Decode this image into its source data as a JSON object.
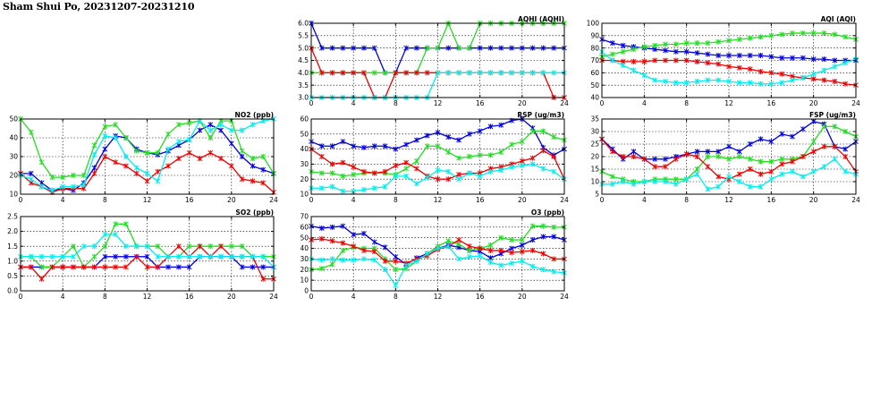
{
  "page_title": "Sham Shui Po, 20231207-20231210",
  "colors": {
    "blue": "#0000dd",
    "green": "#22dd22",
    "red": "#ee0000",
    "cyan": "#00eeee"
  },
  "chart_data": [
    {
      "id": "aqhi",
      "type": "line",
      "title": "AQHI (AQHI)",
      "xlim": [
        0,
        24
      ],
      "xticks": [
        0,
        4,
        8,
        12,
        16,
        20,
        24
      ],
      "ylim": [
        3,
        6
      ],
      "yticks": [
        "3.0",
        "3.5",
        "4.0",
        "4.5",
        "5.0",
        "5.5",
        "6.0"
      ],
      "grid": true,
      "x": [
        0,
        1,
        2,
        3,
        4,
        5,
        6,
        7,
        8,
        9,
        10,
        11,
        12,
        13,
        14,
        15,
        16,
        17,
        18,
        19,
        20,
        21,
        22,
        23,
        24
      ],
      "series": [
        {
          "color": "blue",
          "values": [
            6,
            5,
            5,
            5,
            5,
            5,
            5,
            4,
            4,
            5,
            5,
            5,
            5,
            5,
            5,
            5,
            5,
            5,
            5,
            5,
            5,
            5,
            5,
            5,
            5
          ]
        },
        {
          "color": "green",
          "values": [
            4,
            4,
            4,
            4,
            4,
            4,
            4,
            4,
            4,
            4,
            4,
            5,
            5,
            6,
            5,
            5,
            6,
            6,
            6,
            6,
            6,
            6,
            6,
            6,
            6
          ]
        },
        {
          "color": "red",
          "values": [
            5,
            4,
            4,
            4,
            4,
            4,
            3,
            3,
            4,
            4,
            4,
            4,
            4,
            4,
            4,
            4,
            4,
            4,
            4,
            4,
            4,
            4,
            4,
            3,
            3
          ]
        },
        {
          "color": "cyan",
          "values": [
            3,
            3,
            3,
            3,
            3,
            3,
            3,
            3,
            3,
            3,
            3,
            3,
            4,
            4,
            4,
            4,
            4,
            4,
            4,
            4,
            4,
            4,
            4,
            4,
            4
          ]
        }
      ]
    },
    {
      "id": "aqi",
      "type": "line",
      "title": "AQI (AQI)",
      "xlim": [
        0,
        24
      ],
      "xticks": [
        0,
        4,
        8,
        12,
        16,
        20,
        24
      ],
      "ylim": [
        40,
        100
      ],
      "yticks": [
        "40",
        "50",
        "60",
        "70",
        "80",
        "90",
        "100"
      ],
      "grid": true,
      "x": [
        0,
        1,
        2,
        3,
        4,
        5,
        6,
        7,
        8,
        9,
        10,
        11,
        12,
        13,
        14,
        15,
        16,
        17,
        18,
        19,
        20,
        21,
        22,
        23,
        24
      ],
      "series": [
        {
          "color": "blue",
          "values": [
            87,
            84,
            82,
            81,
            80,
            79,
            78,
            77,
            77,
            76,
            75,
            74,
            74,
            74,
            74,
            74,
            73,
            72,
            72,
            72,
            71,
            71,
            70,
            70,
            70
          ]
        },
        {
          "color": "green",
          "values": [
            73,
            75,
            77,
            79,
            81,
            82,
            83,
            83,
            84,
            84,
            84,
            85,
            86,
            87,
            88,
            89,
            90,
            91,
            92,
            92,
            92,
            92,
            91,
            89,
            87
          ]
        },
        {
          "color": "red",
          "values": [
            70,
            70,
            69,
            69,
            69,
            70,
            70,
            70,
            70,
            69,
            68,
            67,
            65,
            64,
            63,
            61,
            60,
            59,
            57,
            56,
            55,
            54,
            53,
            51,
            50
          ]
        },
        {
          "color": "cyan",
          "values": [
            77,
            70,
            66,
            62,
            58,
            54,
            53,
            52,
            52,
            53,
            54,
            54,
            53,
            52,
            52,
            51,
            51,
            52,
            54,
            56,
            59,
            62,
            65,
            68,
            71
          ]
        }
      ]
    },
    {
      "id": "no2",
      "type": "line",
      "title": "NO2 (ppb)",
      "xlim": [
        0,
        24
      ],
      "xticks": [
        0,
        4,
        8,
        12,
        16,
        20,
        24
      ],
      "ylim": [
        10,
        50
      ],
      "yticks": [
        "10",
        "20",
        "30",
        "40",
        "50"
      ],
      "grid": true,
      "x": [
        0,
        1,
        2,
        3,
        4,
        5,
        6,
        7,
        8,
        9,
        10,
        11,
        12,
        13,
        14,
        15,
        16,
        17,
        18,
        19,
        20,
        21,
        22,
        23,
        24
      ],
      "series": [
        {
          "color": "blue",
          "values": [
            21,
            21,
            16,
            12,
            13,
            12,
            16,
            24,
            34,
            41,
            40,
            34,
            32,
            31,
            33,
            36,
            39,
            44,
            47,
            44,
            37,
            30,
            25,
            23,
            21
          ]
        },
        {
          "color": "green",
          "values": [
            50,
            43,
            27,
            19,
            19,
            20,
            20,
            36,
            46,
            47,
            40,
            33,
            32,
            32,
            42,
            47,
            48,
            49,
            40,
            49,
            49,
            33,
            29,
            30,
            21
          ]
        },
        {
          "color": "red",
          "values": [
            21,
            16,
            14,
            11,
            13,
            13,
            13,
            21,
            30,
            27,
            25,
            21,
            17,
            22,
            25,
            29,
            32,
            29,
            32,
            29,
            25,
            18,
            17,
            16,
            11
          ]
        },
        {
          "color": "cyan",
          "values": [
            20,
            18,
            14,
            12,
            14,
            14,
            15,
            31,
            41,
            40,
            30,
            24,
            21,
            17,
            34,
            38,
            39,
            49,
            44,
            47,
            44,
            44,
            47,
            49,
            50
          ]
        }
      ]
    },
    {
      "id": "rsp",
      "type": "line",
      "title": "RSP (ug/m3)",
      "xlim": [
        0,
        24
      ],
      "xticks": [
        0,
        4,
        8,
        12,
        16,
        20,
        24
      ],
      "ylim": [
        10,
        60
      ],
      "yticks": [
        "10",
        "20",
        "30",
        "40",
        "50",
        "60"
      ],
      "grid": true,
      "x": [
        0,
        1,
        2,
        3,
        4,
        5,
        6,
        7,
        8,
        9,
        10,
        11,
        12,
        13,
        14,
        15,
        16,
        17,
        18,
        19,
        20,
        21,
        22,
        23,
        24
      ],
      "series": [
        {
          "color": "blue",
          "values": [
            45,
            42,
            42,
            45,
            42,
            41,
            42,
            42,
            40,
            43,
            46,
            49,
            51,
            48,
            46,
            50,
            52,
            55,
            56,
            59,
            60,
            54,
            41,
            36,
            40
          ]
        },
        {
          "color": "green",
          "values": [
            25,
            24,
            24,
            22,
            23,
            24,
            24,
            24,
            23,
            27,
            32,
            42,
            42,
            38,
            34,
            35,
            36,
            36,
            38,
            43,
            45,
            52,
            52,
            48,
            46
          ]
        },
        {
          "color": "red",
          "values": [
            40,
            35,
            30,
            31,
            28,
            25,
            24,
            25,
            29,
            31,
            27,
            22,
            20,
            20,
            23,
            24,
            24,
            27,
            28,
            30,
            32,
            34,
            39,
            35,
            20
          ]
        },
        {
          "color": "cyan",
          "values": [
            14,
            14,
            15,
            12,
            12,
            13,
            14,
            15,
            22,
            22,
            17,
            21,
            26,
            25,
            20,
            24,
            22,
            25,
            26,
            28,
            29,
            30,
            27,
            25,
            20
          ]
        }
      ]
    },
    {
      "id": "fsp",
      "type": "line",
      "title": "FSP (ug/m3)",
      "xlim": [
        0,
        24
      ],
      "xticks": [
        0,
        4,
        8,
        12,
        16,
        20,
        24
      ],
      "ylim": [
        5,
        35
      ],
      "yticks": [
        "5",
        "10",
        "15",
        "20",
        "25",
        "30",
        "35"
      ],
      "grid": true,
      "x": [
        0,
        1,
        2,
        3,
        4,
        5,
        6,
        7,
        8,
        9,
        10,
        11,
        12,
        13,
        14,
        15,
        16,
        17,
        18,
        19,
        20,
        21,
        22,
        23,
        24
      ],
      "series": [
        {
          "color": "blue",
          "values": [
            27,
            23,
            19,
            22,
            19,
            19,
            19,
            20,
            21,
            22,
            22,
            22,
            24,
            22,
            25,
            27,
            26,
            29,
            28,
            31,
            34,
            33,
            24,
            23,
            26
          ]
        },
        {
          "color": "green",
          "values": [
            14,
            12,
            11,
            10,
            10,
            11,
            11,
            11,
            11,
            15,
            20,
            20,
            19,
            20,
            19,
            18,
            18,
            19,
            19,
            20,
            26,
            32,
            32,
            30,
            28
          ]
        },
        {
          "color": "red",
          "values": [
            27,
            22,
            20,
            20,
            19,
            16,
            16,
            19,
            21,
            20,
            16,
            12,
            11,
            13,
            15,
            13,
            14,
            17,
            18,
            20,
            22,
            24,
            24,
            20,
            14
          ]
        },
        {
          "color": "cyan",
          "values": [
            9,
            9,
            10,
            9,
            10,
            10,
            10,
            9,
            11,
            13,
            7,
            8,
            12,
            10,
            8,
            8,
            11,
            13,
            14,
            12,
            14,
            16,
            19,
            14,
            13
          ]
        }
      ]
    },
    {
      "id": "so2",
      "type": "line",
      "title": "SO2 (ppb)",
      "xlim": [
        0,
        24
      ],
      "xticks": [
        0,
        4,
        8,
        12,
        16,
        20,
        24
      ],
      "ylim": [
        0,
        2.5
      ],
      "yticks": [
        "0.0",
        "0.5",
        "1.0",
        "1.5",
        "2.0",
        "2.5"
      ],
      "grid": true,
      "x": [
        0,
        1,
        2,
        3,
        4,
        5,
        6,
        7,
        8,
        9,
        10,
        11,
        12,
        13,
        14,
        15,
        16,
        17,
        18,
        19,
        20,
        21,
        22,
        23,
        24
      ],
      "series": [
        {
          "color": "blue",
          "values": [
            0.8,
            0.8,
            0.8,
            0.8,
            0.8,
            0.8,
            0.8,
            0.8,
            1.15,
            1.15,
            1.15,
            1.15,
            1.15,
            0.8,
            0.8,
            0.8,
            0.8,
            1.15,
            1.15,
            1.15,
            1.15,
            0.8,
            0.8,
            0.8,
            0.8
          ]
        },
        {
          "color": "green",
          "values": [
            1.15,
            1.15,
            0.8,
            0.8,
            1.15,
            1.5,
            0.8,
            1.15,
            1.5,
            2.25,
            2.25,
            1.5,
            1.5,
            1.5,
            1.15,
            1.15,
            1.5,
            1.5,
            1.5,
            1.5,
            1.5,
            1.5,
            1.15,
            1.15,
            1.15
          ]
        },
        {
          "color": "red",
          "values": [
            0.8,
            0.8,
            0.4,
            0.8,
            0.8,
            0.8,
            0.8,
            0.8,
            0.8,
            0.8,
            0.8,
            1.15,
            0.8,
            0.8,
            1.15,
            1.5,
            1.15,
            1.5,
            1.15,
            1.5,
            1.15,
            1.15,
            1.15,
            0.4,
            0.4
          ]
        },
        {
          "color": "cyan",
          "values": [
            1.15,
            1.15,
            1.15,
            1.15,
            1.15,
            1.15,
            1.5,
            1.5,
            1.9,
            1.9,
            1.5,
            1.5,
            1.5,
            1.15,
            1.15,
            1.15,
            1.15,
            1.15,
            1.15,
            1.15,
            1.15,
            1.15,
            1.15,
            1.15,
            0.8
          ]
        }
      ]
    },
    {
      "id": "o3",
      "type": "line",
      "title": "O3 (ppb)",
      "xlim": [
        0,
        24
      ],
      "xticks": [
        0,
        4,
        8,
        12,
        16,
        20,
        24
      ],
      "ylim": [
        0,
        70
      ],
      "yticks": [
        "0",
        "10",
        "20",
        "30",
        "40",
        "50",
        "60",
        "70"
      ],
      "grid": true,
      "x": [
        0,
        1,
        2,
        3,
        4,
        5,
        6,
        7,
        8,
        9,
        10,
        11,
        12,
        13,
        14,
        15,
        16,
        17,
        18,
        19,
        20,
        21,
        22,
        23,
        24
      ],
      "series": [
        {
          "color": "blue",
          "values": [
            61,
            59,
            60,
            61,
            53,
            54,
            46,
            41,
            32,
            25,
            31,
            35,
            40,
            43,
            41,
            38,
            37,
            31,
            35,
            40,
            43,
            48,
            51,
            51,
            48
          ]
        },
        {
          "color": "green",
          "values": [
            20,
            21,
            25,
            38,
            41,
            40,
            40,
            30,
            20,
            21,
            28,
            35,
            42,
            47,
            44,
            38,
            40,
            43,
            50,
            48,
            48,
            61,
            61,
            60,
            60
          ]
        },
        {
          "color": "red",
          "values": [
            48,
            49,
            47,
            45,
            42,
            38,
            37,
            28,
            28,
            26,
            30,
            33,
            39,
            42,
            48,
            42,
            40,
            38,
            38,
            36,
            37,
            38,
            35,
            30,
            30
          ]
        },
        {
          "color": "cyan",
          "values": [
            30,
            29,
            30,
            29,
            29,
            30,
            29,
            20,
            5,
            24,
            28,
            35,
            40,
            42,
            30,
            32,
            33,
            27,
            24,
            26,
            28,
            23,
            20,
            18,
            17
          ]
        }
      ]
    }
  ]
}
